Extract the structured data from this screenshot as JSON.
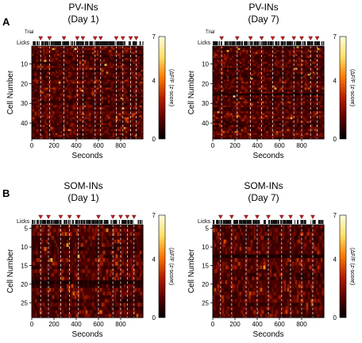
{
  "panel_letters": [
    "A",
    "B"
  ],
  "colorbar": {
    "ticks": [
      "7",
      "4",
      "0"
    ],
    "label": "(ΔF/F (z-score)",
    "colors": [
      "#000000",
      "#5a0000",
      "#b81e00",
      "#ff7a00",
      "#ffe066",
      "#fffde0"
    ]
  },
  "marker_labels": {
    "trial": "Trial",
    "licks": "Licks"
  },
  "x_axis": {
    "label": "Seconds",
    "ticks": [
      "0",
      "200",
      "400",
      "600",
      "800"
    ]
  },
  "y_axis_label": "Cell Number",
  "chart_data": [
    {
      "type": "heatmap",
      "title_line1": "PV-INs",
      "title_line2": "(Day 1)",
      "xlabel": "Seconds",
      "ylabel": "Cell Number",
      "xlim": [
        0,
        1000
      ],
      "xticks": [
        0,
        200,
        400,
        600,
        800
      ],
      "ylim": [
        1,
        48
      ],
      "yticks": [
        10,
        20,
        30,
        40
      ],
      "clim": [
        0,
        7
      ],
      "colorbar_label": "(ΔF/F (z-score)",
      "trial_times": [
        80,
        160,
        290,
        410,
        460,
        570,
        620,
        760,
        820,
        890,
        940
      ],
      "trial_label": "Trial"
    },
    {
      "type": "heatmap",
      "title_line1": "PV-INs",
      "title_line2": "(Day 7)",
      "xlabel": "Seconds",
      "ylabel": "Cell Number",
      "xlim": [
        0,
        1000
      ],
      "xticks": [
        0,
        200,
        400,
        600,
        800
      ],
      "ylim": [
        1,
        48
      ],
      "yticks": [
        10,
        20,
        30,
        40
      ],
      "clim": [
        0,
        7
      ],
      "colorbar_label": "(ΔF/F (z-score)",
      "trial_times": [
        80,
        220,
        340,
        440,
        540,
        630,
        730,
        800,
        880,
        940
      ],
      "trial_label": "Trial"
    },
    {
      "type": "heatmap",
      "title_line1": "SOM-INs",
      "title_line2": "(Day 1)",
      "xlabel": "Seconds",
      "ylabel": "Cell Number",
      "xlim": [
        0,
        1000
      ],
      "xticks": [
        0,
        200,
        400,
        600,
        800
      ],
      "ylim": [
        4,
        29
      ],
      "yticks": [
        5,
        10,
        15,
        20,
        25
      ],
      "clim": [
        0,
        7
      ],
      "colorbar_label": "(ΔF/F (z-score)",
      "trial_times": [
        80,
        150,
        260,
        340,
        420,
        600,
        730,
        800,
        860,
        920
      ],
      "trial_label": ""
    },
    {
      "type": "heatmap",
      "title_line1": "SOM-INs",
      "title_line2": "(Day 7)",
      "xlabel": "Seconds",
      "ylabel": "Cell Number",
      "xlim": [
        0,
        1000
      ],
      "xticks": [
        0,
        200,
        400,
        600,
        800
      ],
      "ylim": [
        4,
        29
      ],
      "yticks": [
        5,
        10,
        15,
        20,
        25
      ],
      "clim": [
        0,
        7
      ],
      "colorbar_label": "(ΔF/F (z-score)",
      "trial_times": [
        70,
        170,
        300,
        400,
        500,
        620,
        700,
        800,
        900
      ],
      "trial_label": ""
    }
  ]
}
